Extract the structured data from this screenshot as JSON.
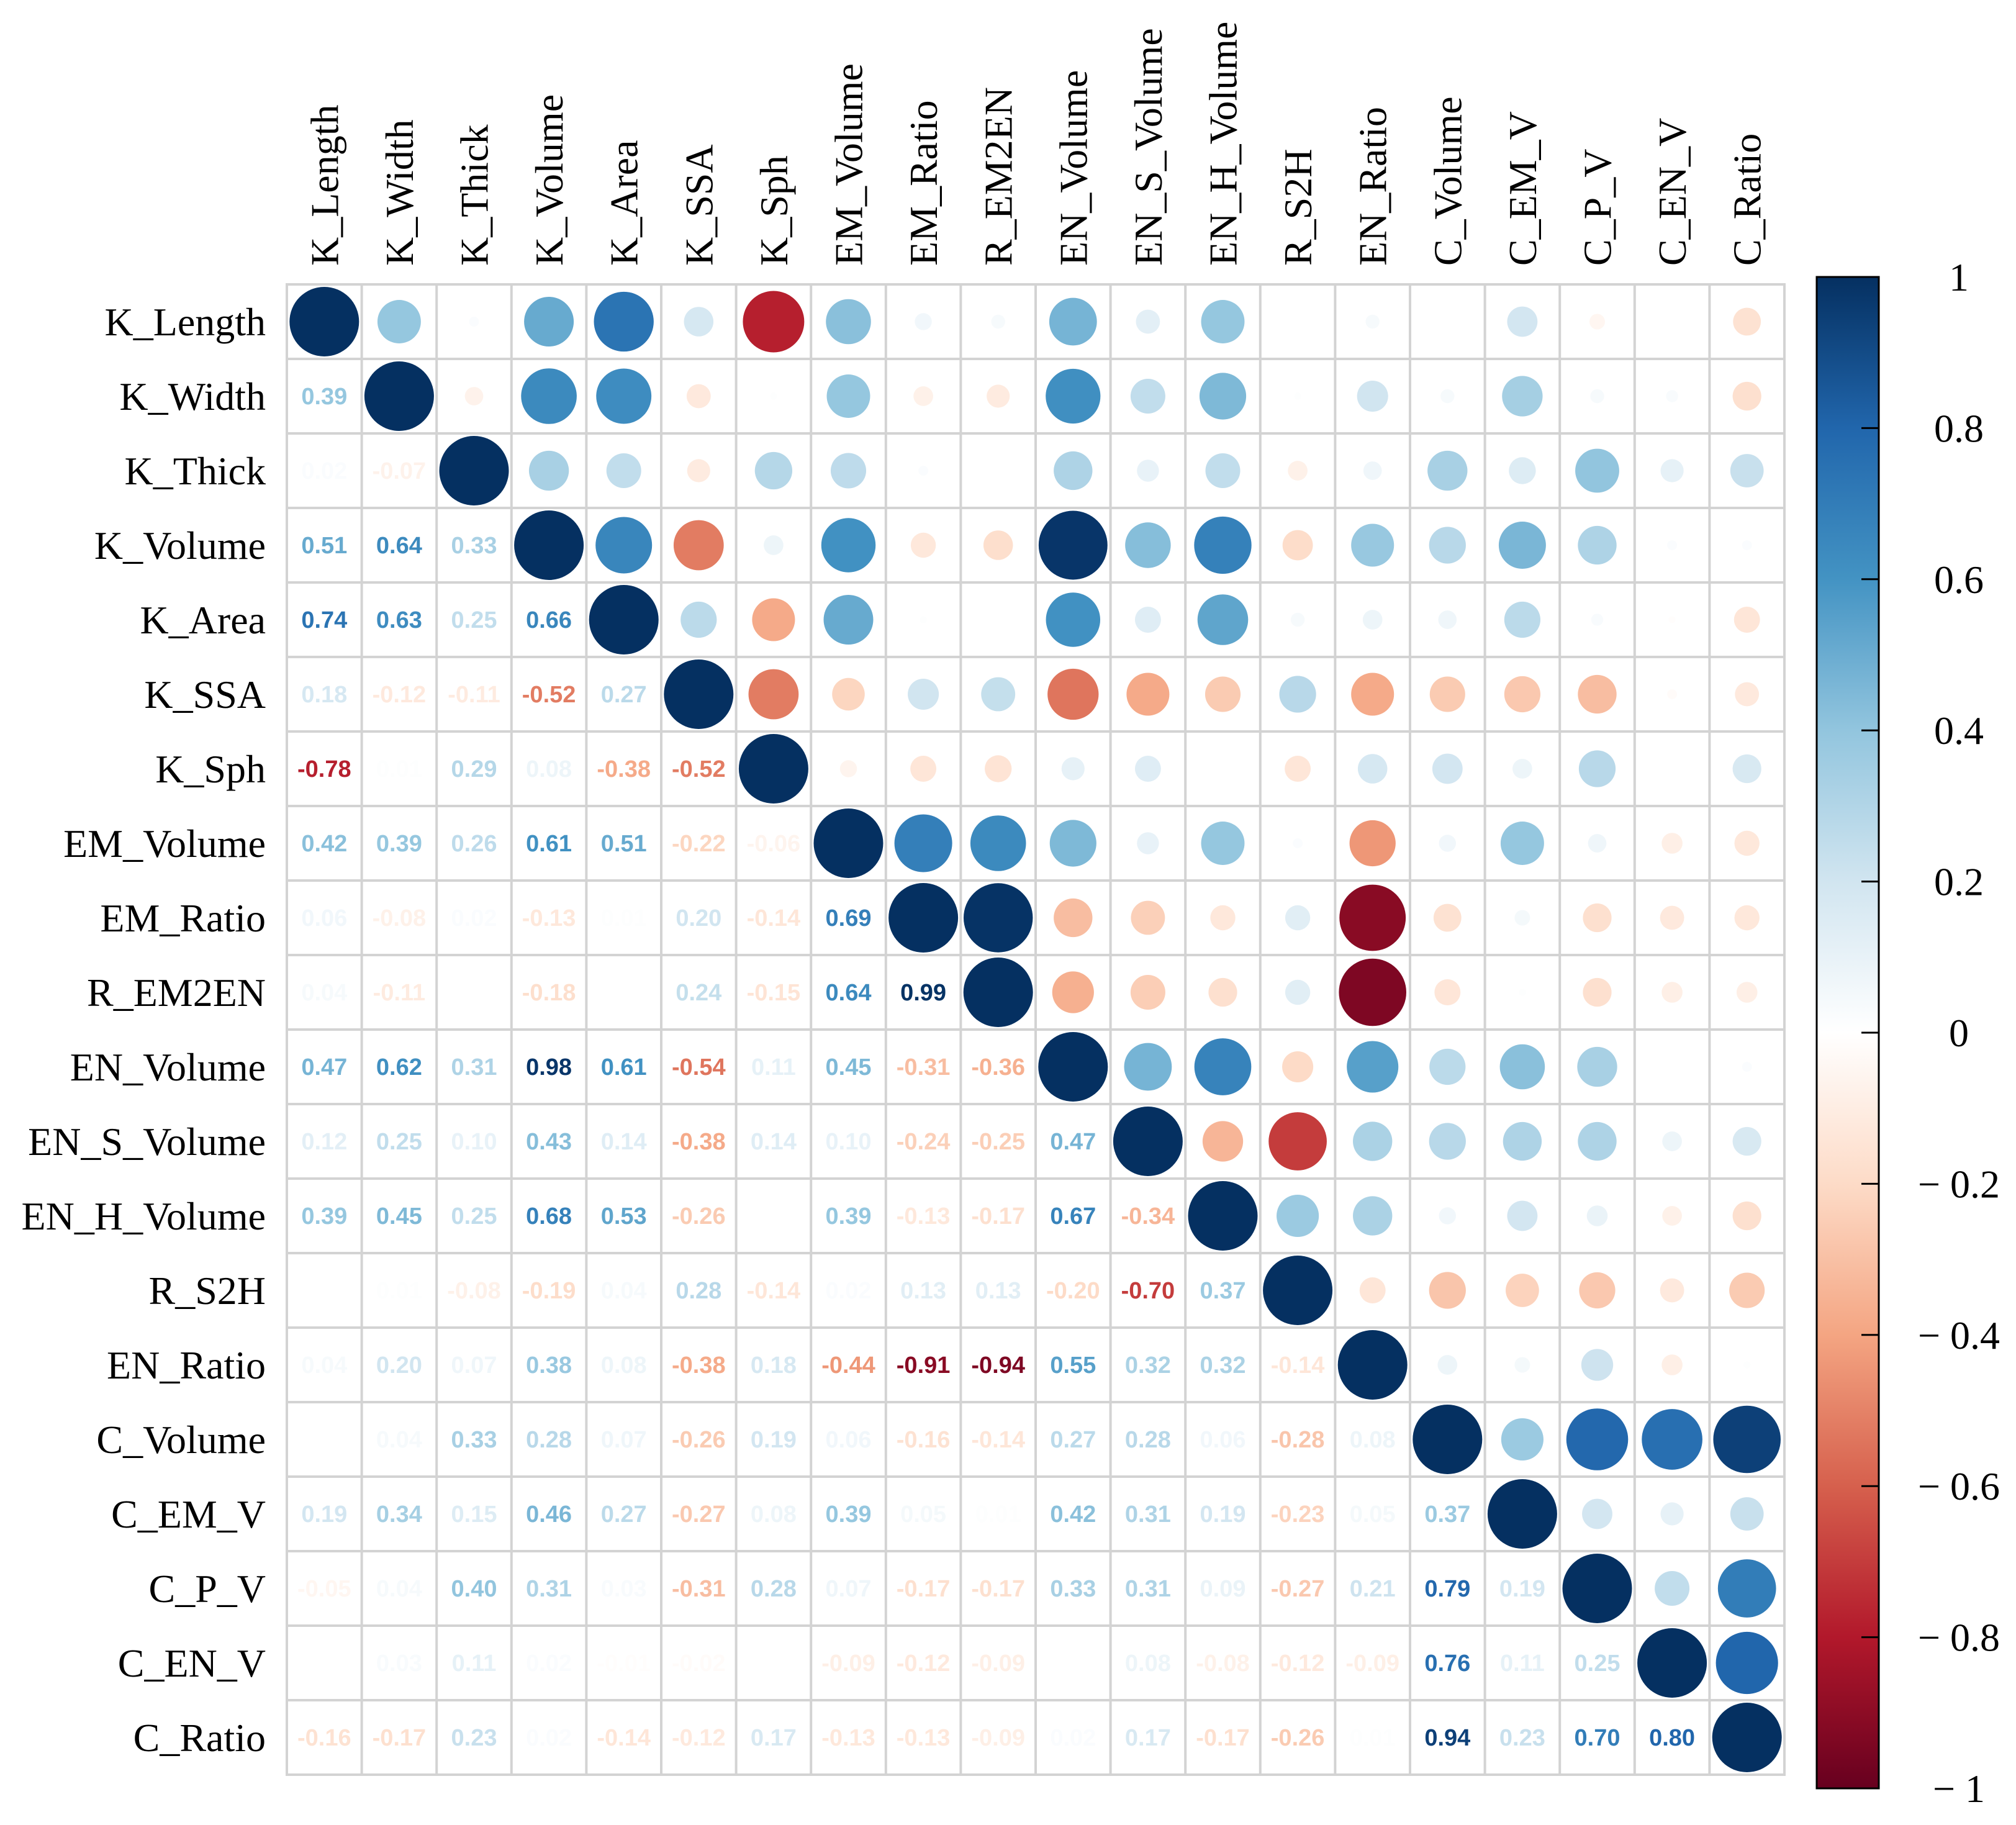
{
  "chart_data": {
    "type": "heatmap",
    "title": "",
    "variables": [
      "K_Length",
      "K_Width",
      "K_Thick",
      "K_Volume",
      "K_Area",
      "K_SSA",
      "K_Sph",
      "EM_Volume",
      "EM_Ratio",
      "R_EM2EN",
      "EN_Volume",
      "EN_S_Volume",
      "EN_H_Volume",
      "R_S2H",
      "EN_Ratio",
      "C_Volume",
      "C_EM_V",
      "C_P_V",
      "C_EN_V",
      "C_Ratio"
    ],
    "lower_triangle_values": [
      [],
      [
        0.39
      ],
      [
        0.02,
        -0.07
      ],
      [
        0.51,
        0.64,
        0.33
      ],
      [
        0.74,
        0.63,
        0.25,
        0.66
      ],
      [
        0.18,
        -0.12,
        -0.11,
        -0.52,
        0.27
      ],
      [
        -0.78,
        0.01,
        0.29,
        0.08,
        -0.38,
        -0.52
      ],
      [
        0.42,
        0.39,
        0.26,
        0.61,
        0.51,
        -0.22,
        -0.06
      ],
      [
        0.06,
        -0.08,
        0.02,
        -0.13,
        0.01,
        0.2,
        -0.14,
        0.69
      ],
      [
        0.04,
        -0.11,
        0.0,
        -0.18,
        0.0,
        0.24,
        -0.15,
        0.64,
        0.99
      ],
      [
        0.47,
        0.62,
        0.31,
        0.98,
        0.61,
        -0.54,
        0.11,
        0.45,
        -0.31,
        -0.36
      ],
      [
        0.12,
        0.25,
        0.1,
        0.43,
        0.14,
        -0.38,
        0.14,
        0.1,
        -0.24,
        -0.25,
        0.47
      ],
      [
        0.39,
        0.45,
        0.25,
        0.68,
        0.53,
        -0.26,
        0.0,
        0.39,
        -0.13,
        -0.17,
        0.67,
        -0.34
      ],
      [
        0.0,
        0.01,
        -0.08,
        -0.19,
        0.04,
        0.28,
        -0.14,
        0.02,
        0.13,
        0.13,
        -0.2,
        -0.7,
        0.37
      ],
      [
        0.04,
        0.2,
        0.07,
        0.38,
        0.08,
        -0.38,
        0.18,
        -0.44,
        -0.91,
        -0.94,
        0.55,
        0.32,
        0.32,
        -0.14
      ],
      [
        0.0,
        0.04,
        0.33,
        0.28,
        0.07,
        -0.26,
        0.19,
        0.06,
        -0.16,
        -0.14,
        0.27,
        0.28,
        0.06,
        -0.28,
        0.08
      ],
      [
        0.19,
        0.34,
        0.15,
        0.46,
        0.27,
        -0.27,
        0.08,
        0.39,
        0.05,
        0.01,
        0.42,
        0.31,
        0.19,
        -0.23,
        0.05,
        0.37
      ],
      [
        -0.05,
        0.04,
        0.4,
        0.31,
        0.03,
        -0.31,
        0.28,
        0.07,
        -0.17,
        -0.17,
        0.33,
        0.31,
        0.09,
        -0.27,
        0.21,
        0.79,
        0.19
      ],
      [
        0.0,
        0.03,
        0.11,
        0.02,
        -0.01,
        -0.02,
        0.0,
        -0.09,
        -0.12,
        -0.09,
        0.0,
        0.08,
        -0.08,
        -0.12,
        -0.09,
        0.76,
        0.11,
        0.25
      ],
      [
        -0.16,
        -0.17,
        0.23,
        0.02,
        -0.14,
        -0.12,
        0.17,
        -0.13,
        -0.13,
        -0.09,
        0.02,
        0.17,
        -0.17,
        -0.26,
        0.01,
        0.94,
        0.23,
        0.7,
        0.8
      ]
    ],
    "legend": {
      "placement": "right",
      "ticks": [
        "1",
        "0.8",
        "0.6",
        "0.4",
        "0.2",
        "0",
        "− 0.2",
        "− 0.4",
        "− 0.6",
        "− 0.8",
        "− 1"
      ]
    },
    "grid": true
  }
}
